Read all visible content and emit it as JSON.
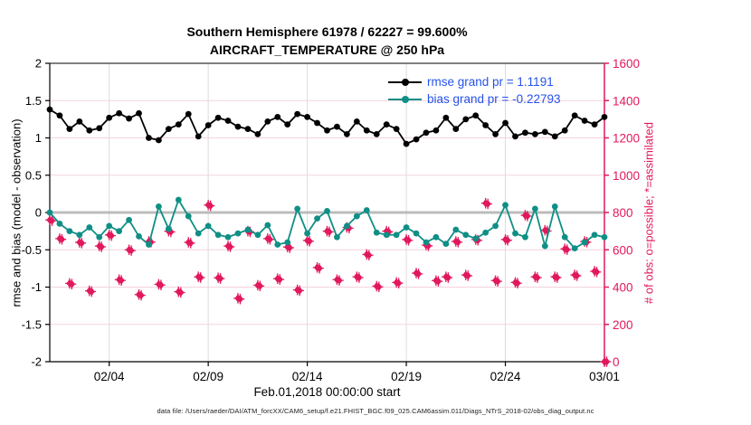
{
  "title": {
    "line1": "Southern Hemisphere 61978 / 62227 = 99.600%",
    "line2": "AIRCRAFT_TEMPERATURE @ 250 hPa"
  },
  "legend": {
    "rmse_label": "rmse grand pr = 1.1191",
    "bias_label": "bias grand pr = -0.22793"
  },
  "left_axis": {
    "label": "rmse and bias (model - observation)",
    "tick_labels": [
      "2",
      "1.5",
      "1",
      "0.5",
      "0",
      "-0.5",
      "-1",
      "-1.5",
      "-2"
    ],
    "tick_values": [
      2,
      1.5,
      1,
      0.5,
      0,
      -0.5,
      -1,
      -1.5,
      -2
    ],
    "range": [
      -2,
      2
    ]
  },
  "right_axis": {
    "label": "# of obs: o=possible; *=assimilated",
    "tick_labels": [
      "1600",
      "1400",
      "1200",
      "1000",
      "800",
      "600",
      "400",
      "200",
      "0"
    ],
    "tick_values": [
      1600,
      1400,
      1200,
      1000,
      800,
      600,
      400,
      200,
      0
    ],
    "range": [
      0,
      1600
    ]
  },
  "x_axis": {
    "label": "Feb.01,2018 00:00:00 start",
    "tick_labels": [
      "02/04",
      "02/09",
      "02/14",
      "02/19",
      "02/24",
      "03/01"
    ],
    "tick_days": [
      3,
      8,
      13,
      18,
      23,
      28
    ],
    "range_days": [
      0,
      28
    ]
  },
  "caption": "data file: /Users/raeder/DAI/ATM_forcXX/CAM6_setup/f.e21.FHIST_BGC.f09_025.CAM6assim.011/Diags_NTrS_2018-02/obs_diag_output.nc",
  "colors": {
    "rmse_line": "#000000",
    "bias_line": "#0f8f86",
    "obs_markers": "#e2185c",
    "legend_text": "#2653e9",
    "grid_pink": "#f6d3de",
    "grid_gray": "#dcdcdc",
    "zero_line": "#bcbcbc"
  },
  "chart_data": {
    "type": "line",
    "title": "Southern Hemisphere 61978 / 62227 = 99.600% | AIRCRAFT_TEMPERATURE @ 250 hPa",
    "xlabel": "Feb.01,2018 00:00:00 start",
    "ylabel_left": "rmse and bias (model - observation)",
    "ylabel_right": "# of obs: o=possible; *=assimilated",
    "left_ylim": [
      -2,
      2
    ],
    "right_ylim": [
      0,
      1600
    ],
    "x_ticks_days": [
      3,
      8,
      13,
      18,
      23,
      28
    ],
    "x_days": [
      0,
      0.5,
      1,
      1.5,
      2,
      2.5,
      3,
      3.5,
      4,
      4.5,
      5,
      5.5,
      6,
      6.5,
      7,
      7.5,
      8,
      8.5,
      9,
      9.5,
      10,
      10.5,
      11,
      11.5,
      12,
      12.5,
      13,
      13.5,
      14,
      14.5,
      15,
      15.5,
      16,
      16.5,
      17,
      17.5,
      18,
      18.5,
      19,
      19.5,
      20,
      20.5,
      21,
      21.5,
      22,
      22.5,
      23,
      23.5,
      24,
      24.5,
      25,
      25.5,
      26,
      26.5,
      27,
      27.5,
      28
    ],
    "series": [
      {
        "name": "rmse",
        "axis": "left",
        "grand_mean": 1.1191,
        "values": [
          1.38,
          1.3,
          1.12,
          1.22,
          1.1,
          1.13,
          1.27,
          1.33,
          1.26,
          1.33,
          1.0,
          0.97,
          1.12,
          1.18,
          1.32,
          1.02,
          1.17,
          1.27,
          1.23,
          1.15,
          1.12,
          1.05,
          1.22,
          1.28,
          1.18,
          1.32,
          1.28,
          1.2,
          1.1,
          1.15,
          1.05,
          1.22,
          1.1,
          1.05,
          1.18,
          1.12,
          0.92,
          0.98,
          1.07,
          1.1,
          1.27,
          1.12,
          1.25,
          1.3,
          1.17,
          1.05,
          1.2,
          1.02,
          1.07,
          1.05,
          1.08,
          1.02,
          1.1,
          1.3,
          1.23,
          1.18,
          1.28
        ]
      },
      {
        "name": "bias",
        "axis": "left",
        "grand_mean": -0.22793,
        "values": [
          0.0,
          -0.15,
          -0.25,
          -0.3,
          -0.2,
          -0.33,
          -0.18,
          -0.25,
          -0.1,
          -0.32,
          -0.43,
          0.08,
          -0.22,
          0.17,
          -0.05,
          -0.28,
          -0.18,
          -0.3,
          -0.33,
          -0.28,
          -0.23,
          -0.3,
          -0.17,
          -0.43,
          -0.4,
          0.05,
          -0.28,
          -0.08,
          0.02,
          -0.33,
          -0.18,
          -0.05,
          0.03,
          -0.27,
          -0.3,
          -0.3,
          -0.2,
          -0.28,
          -0.4,
          -0.33,
          -0.42,
          -0.23,
          -0.3,
          -0.35,
          -0.27,
          -0.18,
          0.1,
          -0.28,
          -0.33,
          0.05,
          -0.45,
          0.08,
          -0.33,
          -0.48,
          -0.4,
          -0.3,
          -0.33
        ]
      },
      {
        "name": "possible_obs",
        "axis": "right",
        "marker": "o",
        "total": 62227,
        "values": [
          760,
          660,
          420,
          640,
          380,
          620,
          680,
          440,
          600,
          360,
          645,
          415,
          700,
          375,
          640,
          455,
          840,
          450,
          620,
          340,
          700,
          410,
          660,
          445,
          615,
          385,
          650,
          505,
          700,
          440,
          720,
          455,
          575,
          405,
          700,
          425,
          655,
          475,
          625,
          435,
          455,
          645,
          465,
          655,
          850,
          435,
          655,
          425,
          785,
          455,
          705,
          455,
          605,
          465,
          645,
          485,
          0
        ]
      },
      {
        "name": "assimilated_obs",
        "axis": "right",
        "marker": "*",
        "total": 61978,
        "values": [
          756,
          656,
          416,
          636,
          376,
          616,
          676,
          436,
          596,
          356,
          641,
          411,
          696,
          371,
          636,
          451,
          836,
          446,
          616,
          336,
          696,
          406,
          656,
          441,
          611,
          381,
          646,
          501,
          696,
          436,
          716,
          451,
          571,
          401,
          696,
          421,
          651,
          471,
          621,
          431,
          451,
          641,
          461,
          651,
          846,
          431,
          651,
          421,
          781,
          451,
          701,
          451,
          601,
          461,
          641,
          481,
          0
        ]
      }
    ]
  }
}
